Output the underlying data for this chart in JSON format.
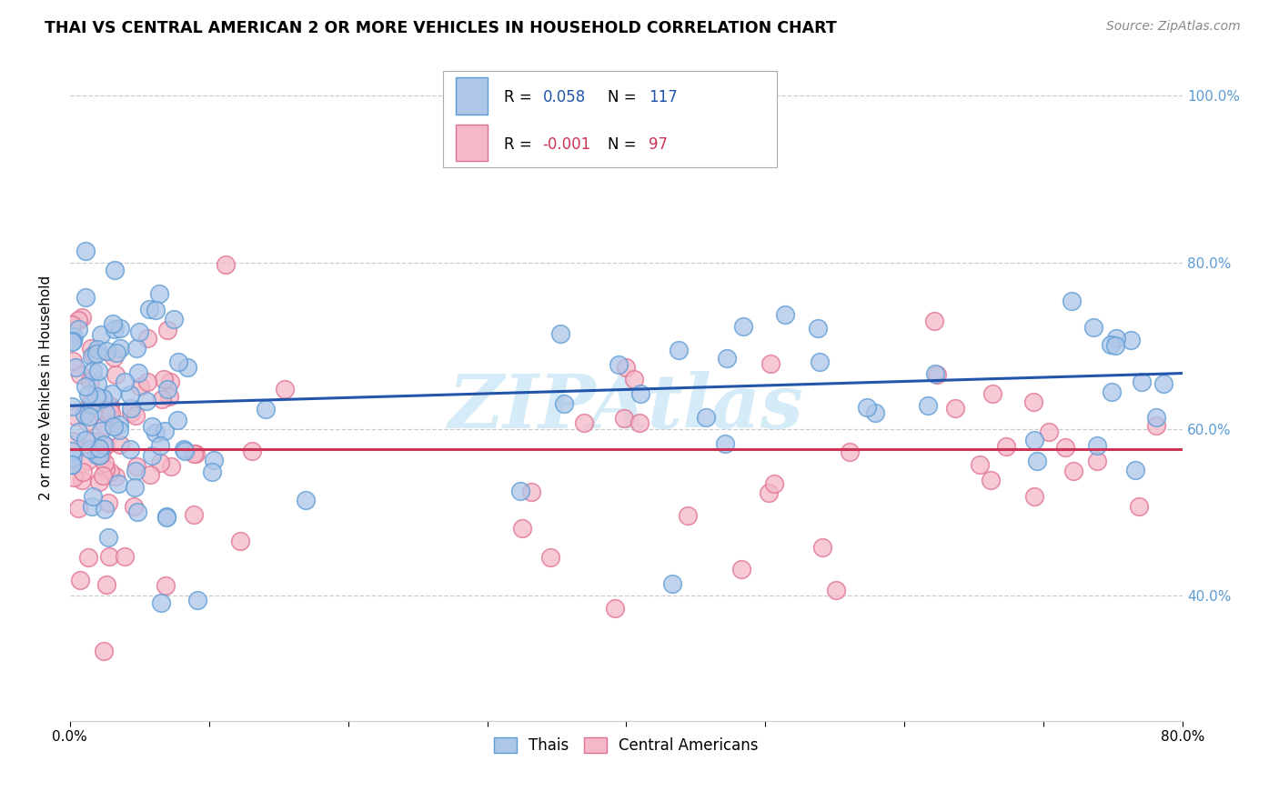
{
  "title": "THAI VS CENTRAL AMERICAN 2 OR MORE VEHICLES IN HOUSEHOLD CORRELATION CHART",
  "source": "Source: ZipAtlas.com",
  "ylabel": "2 or more Vehicles in Household",
  "xlim": [
    0.0,
    0.8
  ],
  "ylim": [
    0.25,
    1.05
  ],
  "thai_R": 0.058,
  "thai_N": 117,
  "central_R": -0.001,
  "central_N": 97,
  "thai_color": "#aec6e8",
  "thai_edge_color": "#5b9bd5",
  "central_color": "#f4b8c8",
  "central_edge_color": "#e07090",
  "thai_line_color": "#2255aa",
  "central_line_color": "#cc3355",
  "grid_color": "#cccccc",
  "right_tick_color": "#5b9bd5",
  "watermark_color": "#d5ebf7",
  "thai_line_y0": 0.628,
  "thai_line_y1": 0.667,
  "central_line_y": 0.576
}
